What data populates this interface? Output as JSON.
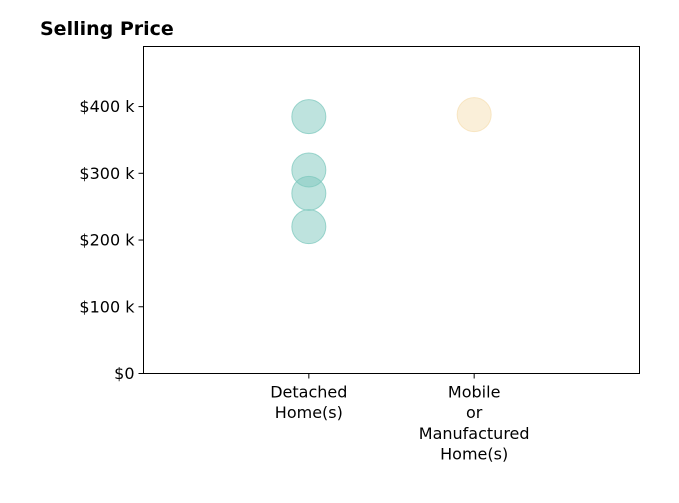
{
  "chart_data": {
    "type": "scatter",
    "title": "Selling Price",
    "xlabel": "",
    "ylabel": "",
    "categories": [
      [
        "Detached",
        "Home(s)"
      ],
      [
        "Mobile",
        "or",
        "Manufactured",
        "Home(s)"
      ]
    ],
    "y_ticks": [
      0,
      100000,
      200000,
      300000,
      400000
    ],
    "y_tick_labels": [
      "$0",
      "$100 k",
      "$200 k",
      "$300 k",
      "$400 k"
    ],
    "ylim": [
      0,
      490000
    ],
    "xlim": [
      -1,
      2
    ],
    "grid": false,
    "legend": "none",
    "series": [
      {
        "category_index": 0,
        "color": "#7ec8be",
        "values": [
          385000,
          305000,
          270000,
          220000
        ]
      },
      {
        "category_index": 1,
        "color": "#f5dfb3",
        "values": [
          388000
        ]
      }
    ]
  }
}
